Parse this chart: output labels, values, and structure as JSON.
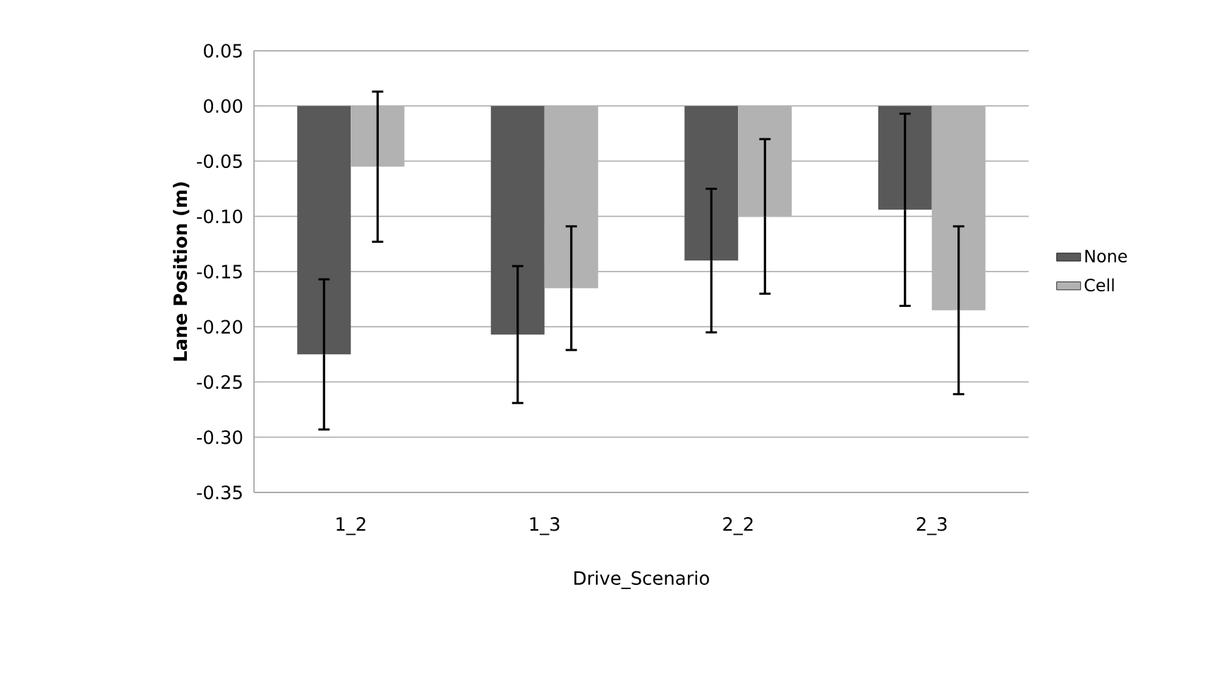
{
  "chart_data": {
    "type": "bar",
    "xlabel": "Drive_Scenario",
    "ylabel": "Lane Position (m)",
    "categories": [
      "1_2",
      "1_3",
      "2_2",
      "2_3"
    ],
    "series": [
      {
        "name": "None",
        "color": "#595959",
        "values": [
          -0.225,
          -0.207,
          -0.14,
          -0.094
        ],
        "errors": [
          0.068,
          0.062,
          0.065,
          0.087
        ]
      },
      {
        "name": "Cell",
        "color": "#b2b2b2",
        "values": [
          -0.055,
          -0.165,
          -0.1,
          -0.185
        ],
        "errors": [
          0.068,
          0.056,
          0.07,
          0.076
        ]
      }
    ],
    "ylim": [
      -0.35,
      0.05
    ],
    "yticks": [
      {
        "value": -0.35,
        "label": "-0.35"
      },
      {
        "value": -0.3,
        "label": "-0.30"
      },
      {
        "value": -0.25,
        "label": "-0.25"
      },
      {
        "value": -0.2,
        "label": "-0.20"
      },
      {
        "value": -0.15,
        "label": "-0.15"
      },
      {
        "value": -0.1,
        "label": "-0.10"
      },
      {
        "value": -0.05,
        "label": "-0.05"
      },
      {
        "value": 0,
        "label": "0.00"
      },
      {
        "value": 0.05,
        "label": "0.05"
      }
    ],
    "grid": "y",
    "legend": "right"
  }
}
